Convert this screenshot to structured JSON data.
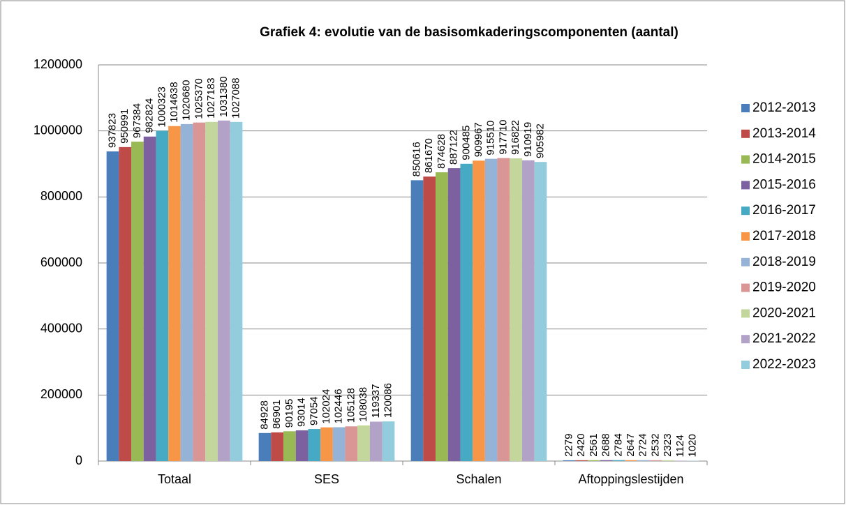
{
  "chart_data": {
    "type": "bar",
    "title": "Grafiek 4: evolutie van de basisomkaderingscomponenten (aantal)",
    "categories": [
      "Totaal",
      "SES",
      "Schalen",
      "Aftoppingslestijden"
    ],
    "series": [
      {
        "name": "2012-2013",
        "color": "#4a7ebb",
        "values": [
          937823,
          84928,
          850616,
          2279
        ]
      },
      {
        "name": "2013-2014",
        "color": "#be4b48",
        "values": [
          950991,
          86901,
          861670,
          2420
        ]
      },
      {
        "name": "2014-2015",
        "color": "#98b954",
        "values": [
          967384,
          90195,
          874628,
          2561
        ]
      },
      {
        "name": "2015-2016",
        "color": "#7d60a0",
        "values": [
          982824,
          93014,
          887122,
          2688
        ]
      },
      {
        "name": "2016-2017",
        "color": "#46aac5",
        "values": [
          1000323,
          97054,
          900485,
          2784
        ]
      },
      {
        "name": "2017-2018",
        "color": "#f79646",
        "values": [
          1014638,
          102024,
          909967,
          2647
        ]
      },
      {
        "name": "2018-2019",
        "color": "#95b3d7",
        "values": [
          1020680,
          102446,
          915510,
          2724
        ]
      },
      {
        "name": "2019-2020",
        "color": "#d99694",
        "values": [
          1025370,
          105128,
          917710,
          2532
        ]
      },
      {
        "name": "2020-2021",
        "color": "#c3d69b",
        "values": [
          1027183,
          108038,
          916822,
          2323
        ]
      },
      {
        "name": "2021-2022",
        "color": "#b3a2c7",
        "values": [
          1031380,
          119337,
          910919,
          1124
        ]
      },
      {
        "name": "2022-2023",
        "color": "#93cddd",
        "values": [
          1027088,
          120086,
          905982,
          1020
        ]
      }
    ],
    "ylim": [
      0,
      1200000
    ],
    "yticks": [
      0,
      200000,
      400000,
      600000,
      800000,
      1000000,
      1200000
    ],
    "grid": true,
    "legend": "right"
  }
}
